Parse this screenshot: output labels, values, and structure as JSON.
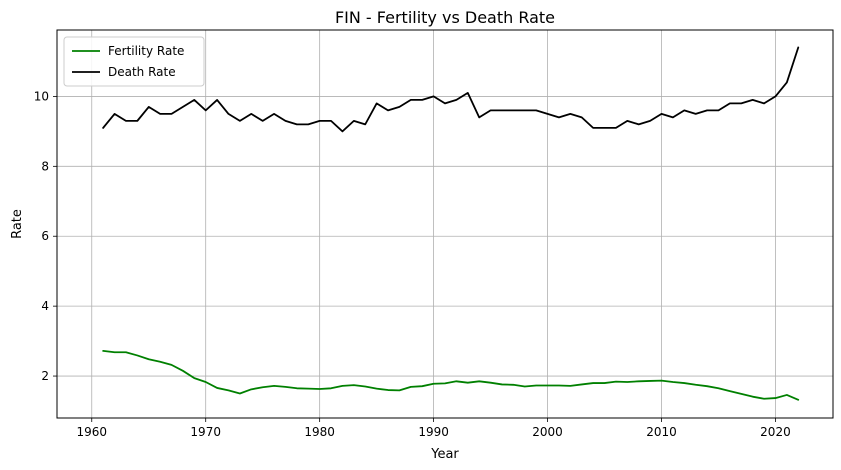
{
  "chart_data": {
    "type": "line",
    "title": "FIN - Fertility vs Death Rate",
    "xlabel": "Year",
    "ylabel": "Rate",
    "xlim": [
      1956.95,
      2025.05
    ],
    "ylim": [
      0.8,
      11.9
    ],
    "xticks": [
      1960,
      1970,
      1980,
      1990,
      2000,
      2010,
      2020
    ],
    "yticks": [
      2,
      4,
      6,
      8,
      10
    ],
    "grid": true,
    "legend_position": "top-left",
    "x": [
      1961,
      1962,
      1963,
      1964,
      1965,
      1966,
      1967,
      1968,
      1969,
      1970,
      1971,
      1972,
      1973,
      1974,
      1975,
      1976,
      1977,
      1978,
      1979,
      1980,
      1981,
      1982,
      1983,
      1984,
      1985,
      1986,
      1987,
      1988,
      1989,
      1990,
      1991,
      1992,
      1993,
      1994,
      1995,
      1996,
      1997,
      1998,
      1999,
      2000,
      2001,
      2002,
      2003,
      2004,
      2005,
      2006,
      2007,
      2008,
      2009,
      2010,
      2011,
      2012,
      2013,
      2014,
      2015,
      2016,
      2017,
      2018,
      2019,
      2020,
      2021,
      2022
    ],
    "series": [
      {
        "name": "Fertility Rate",
        "color": "#008000",
        "values": [
          2.72,
          2.68,
          2.68,
          2.59,
          2.48,
          2.41,
          2.32,
          2.15,
          1.94,
          1.83,
          1.66,
          1.59,
          1.5,
          1.62,
          1.68,
          1.72,
          1.69,
          1.65,
          1.64,
          1.63,
          1.65,
          1.72,
          1.74,
          1.7,
          1.64,
          1.6,
          1.59,
          1.69,
          1.71,
          1.78,
          1.79,
          1.85,
          1.81,
          1.85,
          1.81,
          1.76,
          1.75,
          1.7,
          1.73,
          1.73,
          1.73,
          1.72,
          1.76,
          1.8,
          1.8,
          1.84,
          1.83,
          1.85,
          1.86,
          1.87,
          1.83,
          1.8,
          1.75,
          1.71,
          1.65,
          1.57,
          1.49,
          1.41,
          1.35,
          1.37,
          1.46,
          1.32
        ]
      },
      {
        "name": "Death Rate",
        "color": "#000000",
        "values": [
          9.1,
          9.5,
          9.3,
          9.3,
          9.7,
          9.5,
          9.5,
          9.7,
          9.9,
          9.6,
          9.9,
          9.5,
          9.3,
          9.5,
          9.3,
          9.5,
          9.3,
          9.2,
          9.2,
          9.3,
          9.3,
          9.0,
          9.3,
          9.2,
          9.8,
          9.6,
          9.7,
          9.9,
          9.9,
          10.0,
          9.8,
          9.9,
          10.1,
          9.4,
          9.6,
          9.6,
          9.6,
          9.6,
          9.6,
          9.5,
          9.4,
          9.5,
          9.4,
          9.1,
          9.1,
          9.1,
          9.3,
          9.2,
          9.3,
          9.5,
          9.4,
          9.6,
          9.5,
          9.6,
          9.6,
          9.8,
          9.8,
          9.9,
          9.8,
          10.0,
          10.4,
          11.4
        ]
      }
    ]
  }
}
